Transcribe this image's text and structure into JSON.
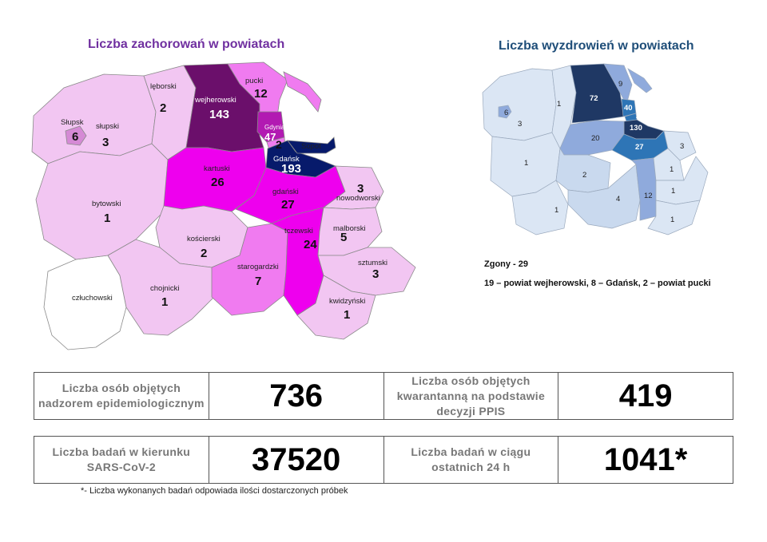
{
  "left_map": {
    "title": "Liczba zachorowań w powiatach",
    "colors": {
      "very_light": "#f2c6f2",
      "medium": "#ee00ee",
      "dark": "#6b0f6b",
      "darkest": "#071a6b",
      "outside": "#ffffff"
    },
    "regions": [
      {
        "name": "lęborski",
        "value": "2"
      },
      {
        "name": "wejherowski",
        "value": "143"
      },
      {
        "name": "pucki",
        "value": "12"
      },
      {
        "name": "Gdynia",
        "value": "47"
      },
      {
        "name": "Sopot",
        "value": "2"
      },
      {
        "name": "Słupsk",
        "value": "6"
      },
      {
        "name": "słupski",
        "value": "3"
      },
      {
        "name": "kartuski",
        "value": "26"
      },
      {
        "name": "Gdańsk",
        "value": "193"
      },
      {
        "name": "gdański",
        "value": "27"
      },
      {
        "name": "nowodworski",
        "value": "3"
      },
      {
        "name": "bytowski",
        "value": "1"
      },
      {
        "name": "kościerski",
        "value": "2"
      },
      {
        "name": "tczewski",
        "value": "24"
      },
      {
        "name": "malborski",
        "value": "5"
      },
      {
        "name": "starogardzki",
        "value": "7"
      },
      {
        "name": "sztumski",
        "value": "3"
      },
      {
        "name": "człuchowski",
        "value": ""
      },
      {
        "name": "chojnicki",
        "value": "1"
      },
      {
        "name": "kwidzyński",
        "value": "1"
      }
    ]
  },
  "right_map": {
    "title": "Liczba wyzdrowień w powiatach",
    "colors": {
      "light": "#c9d9ee",
      "medium": "#8faadc",
      "strong": "#2e75b6",
      "dark": "#1f3864"
    },
    "values": {
      "wejherowski": "72",
      "pucki": "9",
      "lęborski": "1",
      "Słupsk": "6",
      "słupski": "3",
      "Gdynia": "40",
      "Sopot": "2",
      "Gdańsk": "130",
      "kartuski": "20",
      "gdański": "27",
      "nowodworski": "3",
      "bytowski": "1",
      "kościerski": "2",
      "malborski": "1",
      "tczewski": "12",
      "starogardzki": "4",
      "człuchowski": "1",
      "sztumski": "1",
      "kwidzyński": "1"
    },
    "deaths_title": "Zgony - 29",
    "deaths_detail": "19 – powiat wejherowski, 8 – Gdańsk, 2 – powiat pucki"
  },
  "stats": {
    "supervision_label": "Liczba osób objętych nadzorem epidemiologicznym",
    "supervision_value": "736",
    "quarantine_label": "Liczba osób objętych kwarantanną na podstawie decyzji PPIS",
    "quarantine_value": "419",
    "tests_label": "Liczba badań w kierunku SARS-CoV-2",
    "tests_value": "37520",
    "tests24_label": "Liczba badań w ciągu ostatnich 24 h",
    "tests24_value": "1041*"
  },
  "footnote": "*- Liczba wykonanych badań odpowiada ilości dostarczonych próbek"
}
